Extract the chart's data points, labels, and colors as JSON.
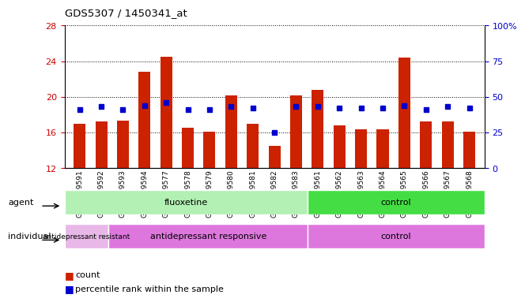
{
  "title": "GDS5307 / 1450341_at",
  "samples": [
    "GSM1059591",
    "GSM1059592",
    "GSM1059593",
    "GSM1059594",
    "GSM1059577",
    "GSM1059578",
    "GSM1059579",
    "GSM1059580",
    "GSM1059581",
    "GSM1059582",
    "GSM1059583",
    "GSM1059561",
    "GSM1059562",
    "GSM1059563",
    "GSM1059564",
    "GSM1059565",
    "GSM1059566",
    "GSM1059567",
    "GSM1059568"
  ],
  "red_values": [
    17.0,
    17.2,
    17.3,
    22.8,
    24.5,
    16.5,
    16.1,
    20.2,
    17.0,
    14.5,
    20.2,
    20.8,
    16.8,
    16.4,
    16.4,
    24.4,
    17.2,
    17.2,
    16.1
  ],
  "blue_pct": [
    41,
    43,
    41,
    44,
    46,
    41,
    41,
    43,
    42,
    25,
    43,
    43,
    42,
    42,
    42,
    44,
    41,
    43,
    42
  ],
  "ylim_left": [
    12,
    28
  ],
  "ylim_right": [
    0,
    100
  ],
  "yticks_left": [
    12,
    16,
    20,
    24,
    28
  ],
  "yticks_right": [
    0,
    25,
    50,
    75,
    100
  ],
  "agent_groups": [
    {
      "label": "fluoxetine",
      "start": 0,
      "end": 11,
      "color": "#b3f0b3"
    },
    {
      "label": "control",
      "start": 11,
      "end": 19,
      "color": "#44dd44"
    }
  ],
  "individual_groups": [
    {
      "label": "antidepressant resistant",
      "start": 0,
      "end": 2,
      "color": "#e8b8e8"
    },
    {
      "label": "antidepressant responsive",
      "start": 2,
      "end": 11,
      "color": "#dd77dd"
    },
    {
      "label": "control",
      "start": 11,
      "end": 19,
      "color": "#dd77dd"
    }
  ],
  "bar_color": "#cc2200",
  "dot_color": "#0000cc",
  "axis_color_left": "#cc0000",
  "axis_color_right": "#0000cc",
  "bar_width": 0.55,
  "agent_label": "agent",
  "individual_label": "individual",
  "bg_color": "#ffffff"
}
